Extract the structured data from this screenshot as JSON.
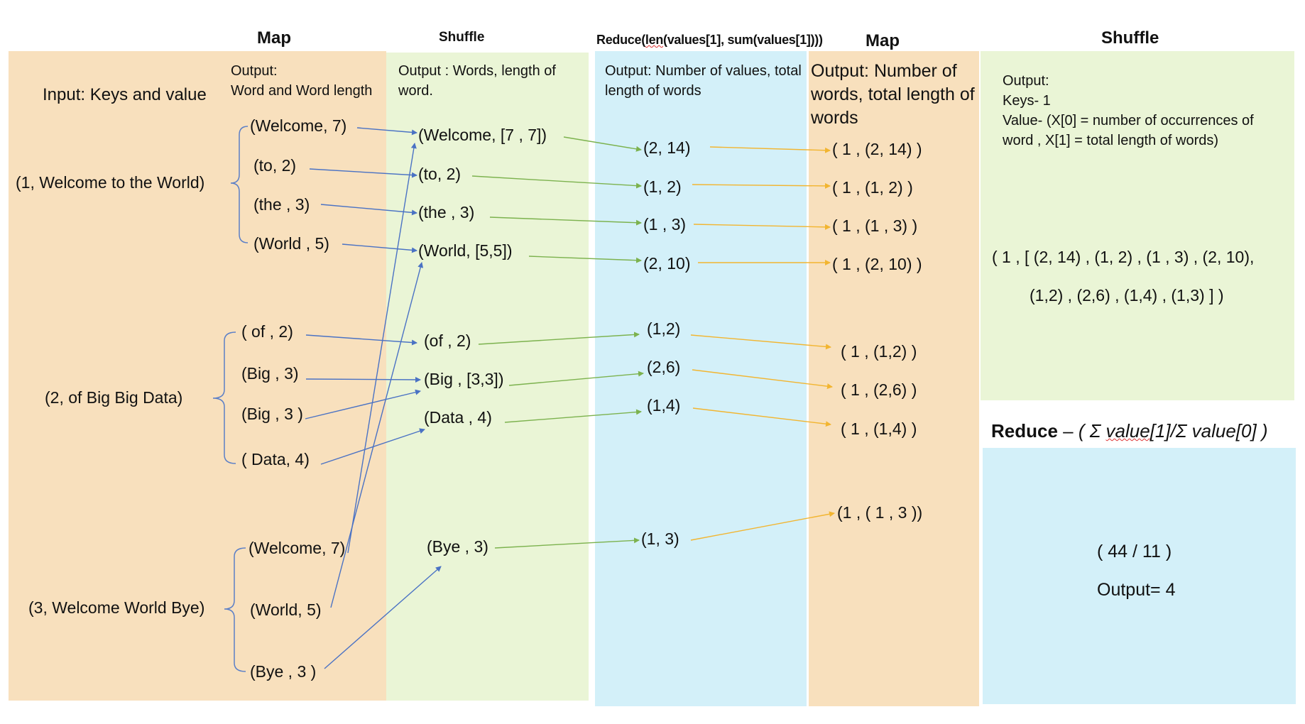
{
  "colors": {
    "map_panel": "#f8e0bd",
    "shuffle_panel": "#eaf5d6",
    "reduce_panel": "#d3f0f9",
    "blue_arrow": "#4a72c4",
    "green_arrow": "#7cb24e",
    "yellow_arrow": "#f2b530",
    "bracket": "#5b7fc7"
  },
  "headers": {
    "map1": "Map",
    "shuffle1": "Shuffle",
    "reduce1": "Reduce(len(values[1], sum(values[1])))",
    "map2": "Map",
    "shuffle2": "Shuffle",
    "reduce2_bold": "Reduce",
    "reduce2_dash": " – ",
    "reduce2_formula": "( Σ value[1]/Σ value[0] )"
  },
  "notes": {
    "input": "Input: Keys and value",
    "map1_output": "Output:\nWord and Word length",
    "shuffle1_output": "Output : Words, length of word.",
    "reduce1_output": "Output: Number of values, total length of words",
    "map2_output": "Output: Number of words, total length of words",
    "shuffle2_output_l1": "Output:",
    "shuffle2_output_l2": "Keys- 1",
    "shuffle2_output_l3": "Value- (X[0] = number of occurrences of word , X[1] = total length of words)"
  },
  "inputs": [
    "(1, Welcome to the World)",
    "(2, of Big Big Data)",
    "(3, Welcome World Bye)"
  ],
  "map1_pairs": [
    "(Welcome, 7)",
    "(to, 2)",
    "(the , 3)",
    "(World , 5)",
    "( of , 2)",
    "(Big , 3)",
    "(Big , 3 )",
    "( Data, 4)",
    "(Welcome, 7)",
    "(World, 5)",
    "(Bye , 3 )"
  ],
  "shuffle1_groups": [
    "(Welcome, [7 , 7])",
    "(to, 2)",
    "(the , 3)",
    "(World, [5,5])",
    "(of , 2)",
    "(Big , [3,3])",
    "(Data , 4)",
    "(Bye , 3)"
  ],
  "reduce1_values": [
    "(2, 14)",
    "(1, 2)",
    "(1 , 3)",
    "(2, 10)",
    "(1,2)",
    "(2,6)",
    "(1,4)",
    "(1, 3)"
  ],
  "map2_values": [
    "( 1 , (2, 14) )",
    "( 1 , (1, 2) )",
    "( 1 , (1 , 3) )",
    "( 1 , (2, 10) )",
    "( 1 , (1,2) )",
    "( 1 , (2,6) )",
    "( 1 , (1,4) )",
    "(1 , ( 1 , 3 ))"
  ],
  "shuffle2_result_l1": "( 1 , [  (2, 14) , (1, 2) , (1 , 3) , (2, 10),",
  "shuffle2_result_l2": "(1,2) , (2,6) , (1,4) , (1,3) ] )",
  "reduce2_result": "( 44 / 11 )",
  "reduce2_output": "Output= 4"
}
